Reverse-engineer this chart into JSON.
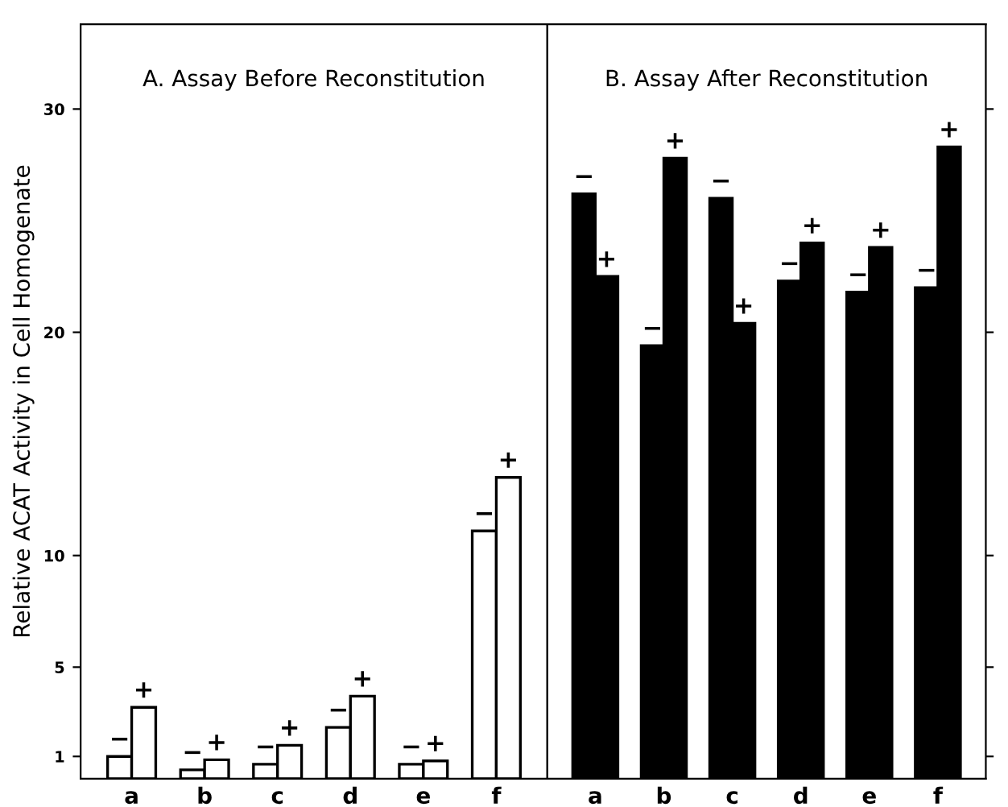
{
  "chart_data": [
    {
      "type": "bar",
      "title": "A. Assay Before Reconstitution",
      "ylabel": "Relative ACAT Activity in Cell Homogenate",
      "categories": [
        "a",
        "b",
        "c",
        "d",
        "e",
        "f"
      ],
      "ylim": [
        0,
        33.8
      ],
      "yticks": [
        1,
        5,
        10,
        20,
        30
      ],
      "grid": false,
      "series": [
        {
          "name": "−",
          "color": "#ffffff",
          "values": [
            1.0,
            0.4,
            0.65,
            2.3,
            0.65,
            11.1
          ]
        },
        {
          "name": "+",
          "color": "#ffffff",
          "values": [
            3.2,
            0.85,
            1.5,
            3.7,
            0.8,
            13.5
          ]
        }
      ]
    },
    {
      "type": "bar",
      "title": "B. Assay After Reconstitution",
      "categories": [
        "a",
        "b",
        "c",
        "d",
        "e",
        "f"
      ],
      "ylim": [
        0,
        33.8
      ],
      "yticks": [
        {
          "value": 1,
          "label": null
        },
        {
          "value": 5,
          "label": null
        },
        {
          "value": 10,
          "label": null
        },
        {
          "value": 20,
          "label": null
        },
        {
          "value": 30,
          "label": null
        }
      ],
      "tick_labels": "x",
      "grid": false,
      "series": [
        {
          "name": "−",
          "color": "#000000",
          "values": [
            26.2,
            19.4,
            26.0,
            22.3,
            21.8,
            22.0
          ]
        },
        {
          "name": "+",
          "color": "#000000",
          "values": [
            22.5,
            27.8,
            20.4,
            24.0,
            23.8,
            28.3
          ]
        }
      ]
    }
  ]
}
